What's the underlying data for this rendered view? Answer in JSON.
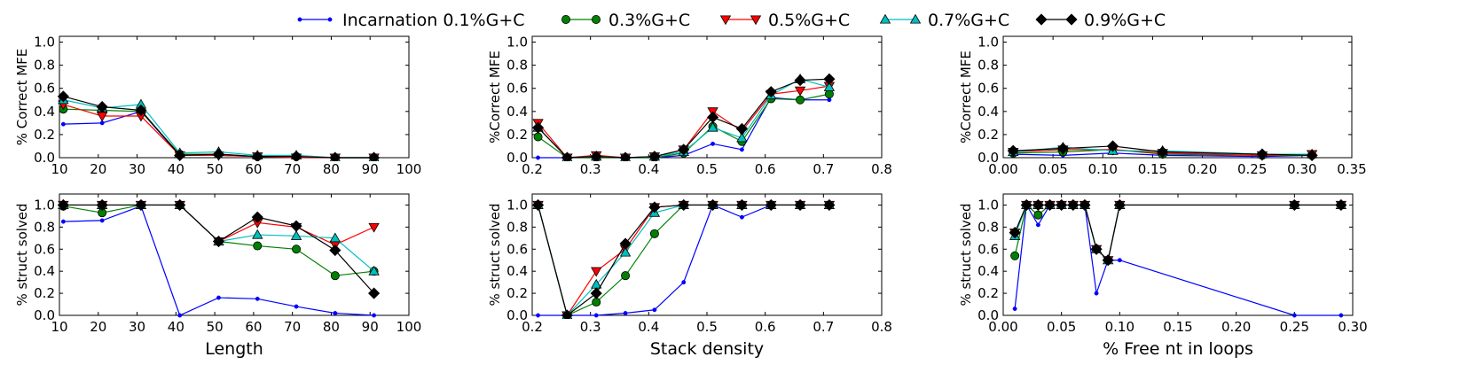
{
  "legend": {
    "items": [
      {
        "label": "Incarnation 0.1%G+C",
        "color": "#0000ff",
        "marker": "dot"
      },
      {
        "label": "0.3%G+C",
        "color": "#008000",
        "marker": "circle"
      },
      {
        "label": "0.5%G+C",
        "color": "#ff0000",
        "marker": "triangle-down"
      },
      {
        "label": "0.7%G+C",
        "color": "#00bfbf",
        "marker": "triangle-up"
      },
      {
        "label": "0.9%G+C",
        "color": "#000000",
        "marker": "diamond"
      }
    ]
  },
  "chart_data": [
    {
      "type": "line",
      "ylabel": "% Correct MFE",
      "xlabel": "",
      "xlim": [
        10,
        100
      ],
      "ylim": [
        0,
        1.05
      ],
      "xticks": [
        "10",
        "20",
        "30",
        "40",
        "50",
        "60",
        "70",
        "80",
        "90",
        "100"
      ],
      "yticks": [
        "0.0",
        "0.2",
        "0.4",
        "0.6",
        "0.8",
        "1.0"
      ],
      "x": [
        11,
        21,
        31,
        41,
        51,
        61,
        71,
        81,
        91
      ],
      "series": [
        {
          "name": "Incarnation 0.1%G+C",
          "values": [
            0.29,
            0.3,
            0.4,
            0.02,
            0.02,
            0.01,
            0.01,
            0.0,
            0.0
          ]
        },
        {
          "name": "0.3%G+C",
          "values": [
            0.42,
            0.41,
            0.4,
            0.03,
            0.03,
            0.01,
            0.01,
            0.0,
            0.0
          ]
        },
        {
          "name": "0.5%G+C",
          "values": [
            0.46,
            0.36,
            0.36,
            0.02,
            0.02,
            0.01,
            0.0,
            0.0,
            0.0
          ]
        },
        {
          "name": "0.7%G+C",
          "values": [
            0.5,
            0.43,
            0.46,
            0.04,
            0.05,
            0.02,
            0.02,
            0.0,
            0.0
          ]
        },
        {
          "name": "0.9%G+C",
          "values": [
            0.53,
            0.44,
            0.41,
            0.02,
            0.03,
            0.01,
            0.01,
            0.0,
            0.0
          ]
        }
      ]
    },
    {
      "type": "line",
      "ylabel": "%Correct MFE",
      "xlabel": "",
      "xlim": [
        0.2,
        0.8
      ],
      "ylim": [
        0,
        1.05
      ],
      "xticks": [
        "0.2",
        "0.3",
        "0.4",
        "0.5",
        "0.6",
        "0.7",
        "0.8"
      ],
      "yticks": [
        "0.0",
        "0.2",
        "0.4",
        "0.6",
        "0.8",
        "1.0"
      ],
      "x": [
        0.21,
        0.26,
        0.31,
        0.36,
        0.41,
        0.46,
        0.51,
        0.56,
        0.61,
        0.66,
        0.71
      ],
      "series": [
        {
          "name": "Incarnation 0.1%G+C",
          "values": [
            0.0,
            0.0,
            0.0,
            0.0,
            0.0,
            0.02,
            0.12,
            0.07,
            0.52,
            0.5,
            0.5
          ]
        },
        {
          "name": "0.3%G+C",
          "values": [
            0.18,
            0.0,
            0.0,
            0.0,
            0.0,
            0.04,
            0.27,
            0.14,
            0.51,
            0.5,
            0.55
          ]
        },
        {
          "name": "0.5%G+C",
          "values": [
            0.3,
            0.0,
            0.02,
            0.0,
            0.01,
            0.07,
            0.4,
            0.23,
            0.55,
            0.58,
            0.62
          ]
        },
        {
          "name": "0.7%G+C",
          "values": [
            0.26,
            0.0,
            0.01,
            0.0,
            0.01,
            0.05,
            0.26,
            0.17,
            0.54,
            0.68,
            0.61
          ]
        },
        {
          "name": "0.9%G+C",
          "values": [
            0.26,
            0.0,
            0.01,
            0.0,
            0.01,
            0.07,
            0.35,
            0.25,
            0.57,
            0.67,
            0.68
          ]
        }
      ]
    },
    {
      "type": "line",
      "ylabel": "%Correct MFE",
      "xlabel": "",
      "xlim": [
        0.0,
        0.35
      ],
      "ylim": [
        0,
        1.05
      ],
      "xticks": [
        "0.00",
        "0.05",
        "0.10",
        "0.15",
        "0.20",
        "0.25",
        "0.30",
        "0.35"
      ],
      "yticks": [
        "0.0",
        "0.2",
        "0.4",
        "0.6",
        "0.8",
        "1.0"
      ],
      "x": [
        0.01,
        0.06,
        0.11,
        0.16,
        0.26,
        0.31
      ],
      "series": [
        {
          "name": "Incarnation 0.1%G+C",
          "values": [
            0.03,
            0.02,
            0.04,
            0.02,
            0.01,
            0.02
          ]
        },
        {
          "name": "0.3%G+C",
          "values": [
            0.04,
            0.05,
            0.07,
            0.03,
            0.02,
            0.02
          ]
        },
        {
          "name": "0.5%G+C",
          "values": [
            0.05,
            0.07,
            0.07,
            0.04,
            0.02,
            0.03
          ]
        },
        {
          "name": "0.7%G+C",
          "values": [
            0.05,
            0.09,
            0.06,
            0.06,
            0.03,
            0.03
          ]
        },
        {
          "name": "0.9%G+C",
          "values": [
            0.06,
            0.08,
            0.1,
            0.05,
            0.03,
            0.02
          ]
        }
      ]
    },
    {
      "type": "line",
      "ylabel": "% struct solved",
      "xlabel": "Length",
      "xlim": [
        10,
        100
      ],
      "ylim": [
        0,
        1.1
      ],
      "xticks": [
        "10",
        "20",
        "30",
        "40",
        "50",
        "60",
        "70",
        "80",
        "90",
        "100"
      ],
      "yticks": [
        "0.0",
        "0.2",
        "0.4",
        "0.6",
        "0.8",
        "1.0"
      ],
      "x": [
        11,
        21,
        31,
        41,
        51,
        61,
        71,
        81,
        91
      ],
      "series": [
        {
          "name": "Incarnation 0.1%G+C",
          "values": [
            0.85,
            0.86,
            0.99,
            0.0,
            0.16,
            0.15,
            0.08,
            0.02,
            0.0
          ]
        },
        {
          "name": "0.3%G+C",
          "values": [
            0.99,
            0.93,
            1.0,
            1.0,
            0.67,
            0.63,
            0.6,
            0.36,
            0.4
          ]
        },
        {
          "name": "0.5%G+C",
          "values": [
            1.0,
            1.0,
            1.0,
            1.0,
            0.67,
            0.84,
            0.8,
            0.64,
            0.8
          ]
        },
        {
          "name": "0.7%G+C",
          "values": [
            1.0,
            1.0,
            1.0,
            1.0,
            0.67,
            0.73,
            0.72,
            0.7,
            0.4
          ]
        },
        {
          "name": "0.9%G+C",
          "values": [
            1.0,
            1.0,
            1.0,
            1.0,
            0.67,
            0.89,
            0.81,
            0.59,
            0.2
          ]
        }
      ]
    },
    {
      "type": "line",
      "ylabel": "% struct solved",
      "xlabel": "Stack density",
      "xlim": [
        0.2,
        0.8
      ],
      "ylim": [
        0,
        1.1
      ],
      "xticks": [
        "0.2",
        "0.3",
        "0.4",
        "0.5",
        "0.6",
        "0.7",
        "0.8"
      ],
      "yticks": [
        "0.0",
        "0.2",
        "0.4",
        "0.6",
        "0.8",
        "1.0"
      ],
      "x": [
        0.21,
        0.26,
        0.31,
        0.36,
        0.41,
        0.46,
        0.51,
        0.56,
        0.61,
        0.66,
        0.71
      ],
      "series": [
        {
          "name": "Incarnation 0.1%G+C",
          "values": [
            0.0,
            0.0,
            0.0,
            0.02,
            0.05,
            0.3,
            1.0,
            0.89,
            1.0,
            1.0,
            1.0
          ]
        },
        {
          "name": "0.3%G+C",
          "values": [
            1.0,
            0.0,
            0.12,
            0.36,
            0.74,
            1.0,
            1.0,
            1.0,
            1.0,
            1.0,
            1.0
          ]
        },
        {
          "name": "0.5%G+C",
          "values": [
            1.0,
            0.0,
            0.4,
            0.6,
            0.98,
            1.0,
            1.0,
            1.0,
            1.0,
            1.0,
            1.0
          ]
        },
        {
          "name": "0.7%G+C",
          "values": [
            1.0,
            0.0,
            0.28,
            0.57,
            0.93,
            1.0,
            1.0,
            1.0,
            1.0,
            1.0,
            1.0
          ]
        },
        {
          "name": "0.9%G+C",
          "values": [
            1.0,
            0.0,
            0.2,
            0.65,
            0.98,
            1.0,
            1.0,
            1.0,
            1.0,
            1.0,
            1.0
          ]
        }
      ]
    },
    {
      "type": "line",
      "ylabel": "% struct solved",
      "xlabel": "% Free nt in loops",
      "xlim": [
        0.0,
        0.3
      ],
      "ylim": [
        0,
        1.1
      ],
      "xticks": [
        "0.00",
        "0.05",
        "0.10",
        "0.15",
        "0.20",
        "0.25",
        "0.30"
      ],
      "yticks": [
        "0.0",
        "0.2",
        "0.4",
        "0.6",
        "0.8",
        "1.0"
      ],
      "x": [
        0.01,
        0.02,
        0.03,
        0.04,
        0.05,
        0.06,
        0.07,
        0.08,
        0.09,
        0.1,
        0.25,
        0.29
      ],
      "series": [
        {
          "name": "Incarnation 0.1%G+C",
          "values": [
            0.06,
            1.0,
            0.82,
            1.0,
            1.0,
            1.0,
            1.0,
            0.2,
            0.5,
            0.5,
            0.0,
            0.0
          ]
        },
        {
          "name": "0.3%G+C",
          "values": [
            0.54,
            1.0,
            0.91,
            1.0,
            1.0,
            1.0,
            1.0,
            0.6,
            0.5,
            1.0,
            1.0,
            1.0
          ]
        },
        {
          "name": "0.5%G+C",
          "values": [
            0.75,
            1.0,
            1.0,
            1.0,
            1.0,
            1.0,
            1.0,
            0.6,
            0.5,
            1.0,
            1.0,
            1.0
          ]
        },
        {
          "name": "0.7%G+C",
          "values": [
            0.72,
            1.0,
            1.0,
            1.0,
            1.0,
            1.0,
            1.0,
            0.6,
            0.5,
            1.0,
            1.0,
            1.0
          ]
        },
        {
          "name": "0.9%G+C",
          "values": [
            0.75,
            1.0,
            1.0,
            1.0,
            1.0,
            1.0,
            1.0,
            0.6,
            0.5,
            1.0,
            1.0,
            1.0
          ]
        }
      ]
    }
  ]
}
